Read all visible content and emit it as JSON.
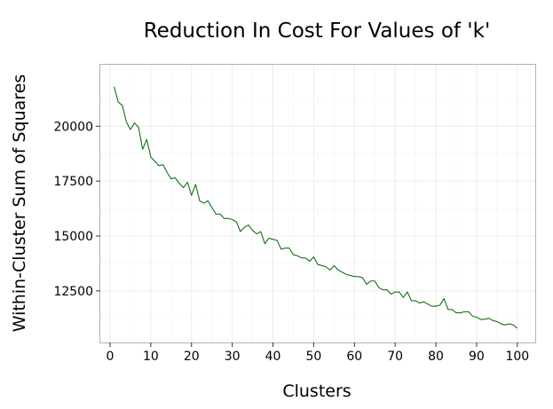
{
  "chart_data": {
    "type": "line",
    "title": "Reduction In Cost For Values of 'k'",
    "xlabel": "Clusters",
    "ylabel": "Within-Cluster Sum of Squares",
    "xlim": [
      -2.4,
      104.4
    ],
    "ylim": [
      10150,
      22800
    ],
    "xticks": [
      0,
      10,
      20,
      30,
      40,
      50,
      60,
      70,
      80,
      90,
      100
    ],
    "xtick_labels": [
      "0",
      "10",
      "20",
      "30",
      "40",
      "50",
      "60",
      "70",
      "80",
      "90",
      "100"
    ],
    "yticks": [
      12500,
      15000,
      17500,
      20000
    ],
    "ytick_labels": [
      "12500",
      "15000",
      "17500",
      "20000"
    ],
    "grid": true,
    "legend": "none",
    "series": [
      {
        "color": "#006400",
        "x": [
          1,
          2,
          3,
          4,
          5,
          6,
          7,
          8,
          9,
          10,
          11,
          12,
          13,
          14,
          15,
          16,
          17,
          18,
          19,
          20,
          21,
          22,
          23,
          24,
          25,
          26,
          27,
          28,
          29,
          30,
          31,
          32,
          33,
          34,
          35,
          36,
          37,
          38,
          39,
          40,
          41,
          42,
          43,
          44,
          45,
          46,
          47,
          48,
          49,
          50,
          51,
          52,
          53,
          54,
          55,
          56,
          57,
          58,
          59,
          60,
          61,
          62,
          63,
          64,
          65,
          66,
          67,
          68,
          69,
          70,
          71,
          72,
          73,
          74,
          75,
          76,
          77,
          78,
          79,
          80,
          81,
          82,
          83,
          84,
          85,
          86,
          87,
          88,
          89,
          90,
          91,
          92,
          93,
          94,
          95,
          96,
          97,
          98,
          99,
          100
        ],
        "values": [
          21800,
          21100,
          20950,
          20200,
          19850,
          20150,
          19950,
          18950,
          19400,
          18600,
          18400,
          18200,
          18250,
          17900,
          17600,
          17650,
          17400,
          17200,
          17450,
          16850,
          17350,
          16600,
          16500,
          16600,
          16300,
          16000,
          16000,
          15800,
          15800,
          15750,
          15650,
          15200,
          15400,
          15500,
          15250,
          15100,
          15200,
          14650,
          14900,
          14850,
          14800,
          14400,
          14450,
          14450,
          14150,
          14100,
          14000,
          14000,
          13850,
          14050,
          13700,
          13650,
          13600,
          13450,
          13650,
          13450,
          13350,
          13250,
          13200,
          13150,
          13150,
          13100,
          12800,
          12950,
          12950,
          12650,
          12550,
          12550,
          12350,
          12450,
          12450,
          12200,
          12450,
          12050,
          12050,
          11950,
          12000,
          11900,
          11800,
          11800,
          11850,
          12150,
          11650,
          11650,
          11500,
          11500,
          11550,
          11550,
          11350,
          11300,
          11200,
          11200,
          11250,
          11150,
          11100,
          11000,
          10950,
          11000,
          10950,
          10800
        ]
      }
    ]
  }
}
